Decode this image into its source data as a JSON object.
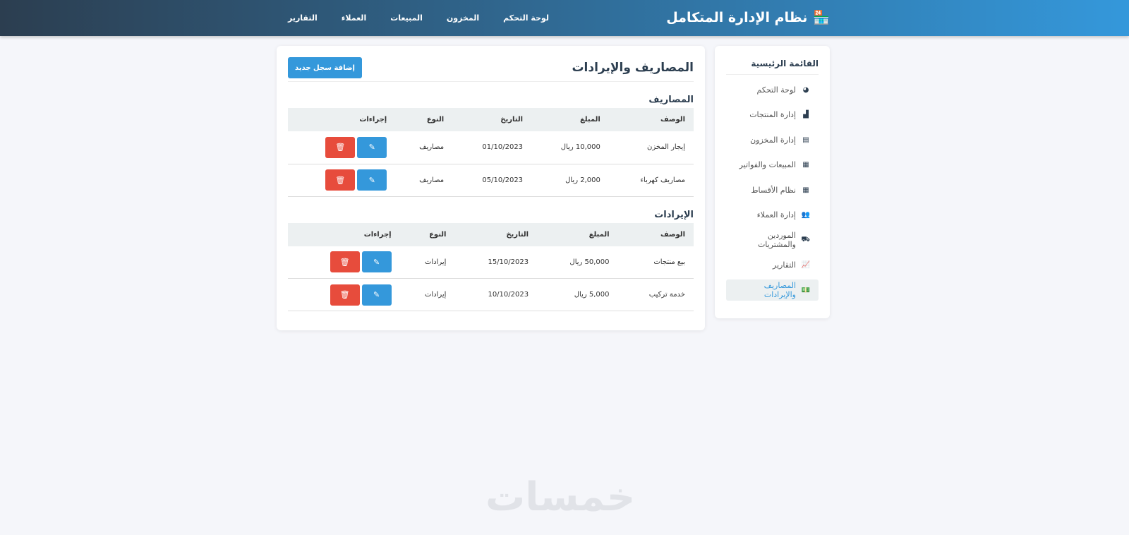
{
  "navbar": {
    "brand": "نظام الإدارة المتكامل",
    "brand_icon": "store-icon",
    "links": [
      "لوحة التحكم",
      "المخزون",
      "المبيعات",
      "العملاء",
      "التقارير"
    ]
  },
  "sidebar": {
    "title": "القائمة الرئيسية",
    "items": [
      {
        "label": "لوحة التحكم",
        "icon": "◕"
      },
      {
        "label": "إدارة المنتجات",
        "icon": "▟"
      },
      {
        "label": "إدارة المخزون",
        "icon": "▤"
      },
      {
        "label": "المبيعات والفواتير",
        "icon": "▦"
      },
      {
        "label": "نظام الأقساط",
        "icon": "▦"
      },
      {
        "label": "إدارة العملاء",
        "icon": "👥"
      },
      {
        "label": "الموردين والمشتريات",
        "icon": "⛟"
      },
      {
        "label": "التقارير",
        "icon": "📈"
      },
      {
        "label": "المصاريف والإيرادات",
        "icon": "💵",
        "active": true
      }
    ]
  },
  "main": {
    "title": "المصاريف والإيرادات",
    "add_button": "إضافة سجل جديد",
    "columns": [
      "الوصف",
      "المبلغ",
      "التاريخ",
      "النوع",
      "إجراءات"
    ],
    "expenses": {
      "title": "المصاريف",
      "rows": [
        [
          "إيجار المخزن",
          "10,000 ريال",
          "01/10/2023",
          "مصاريف"
        ],
        [
          "مصاريف كهرباء",
          "2,000 ريال",
          "05/10/2023",
          "مصاريف"
        ]
      ]
    },
    "revenues": {
      "title": "الإيرادات",
      "rows": [
        [
          "بيع منتجات",
          "50,000 ريال",
          "15/10/2023",
          "إيرادات"
        ],
        [
          "خدمة تركيب",
          "5,000 ريال",
          "10/10/2023",
          "إيرادات"
        ]
      ]
    }
  },
  "colors": {
    "primary": "#3498db",
    "danger": "#e74c3c",
    "dark": "#2c3e50"
  },
  "watermark": "خمسات"
}
